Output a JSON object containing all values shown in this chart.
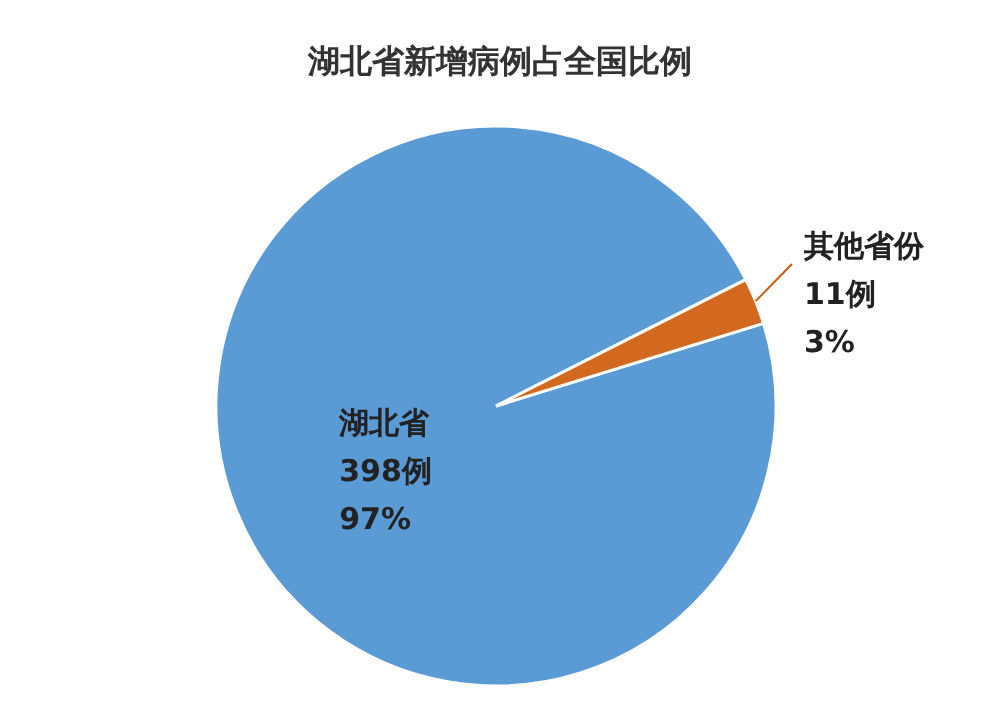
{
  "chart_data": {
    "type": "pie",
    "title": "湖北省新增病例占全国比例",
    "categories": [
      "湖北省",
      "其他省份"
    ],
    "values": [
      398,
      11
    ],
    "colors": [
      "#5b9bd5",
      "#d2691e"
    ],
    "value_labels": [
      "398例\n97%",
      "11例\n3%"
    ]
  }
}
